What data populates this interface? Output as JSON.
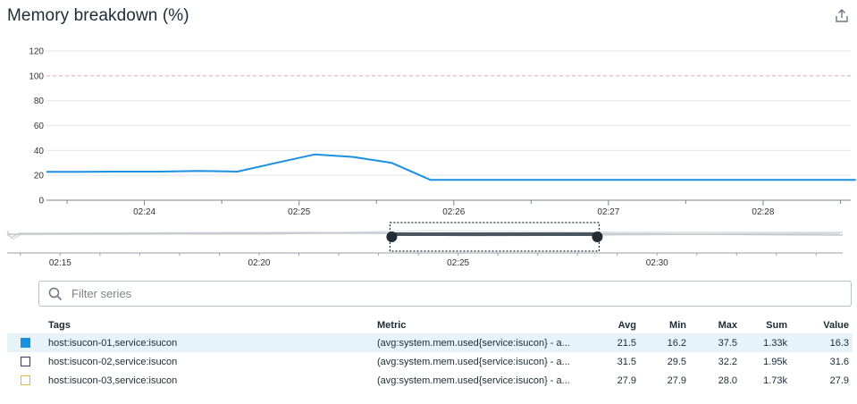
{
  "widget": {
    "title": "Memory breakdown (%)",
    "share_icon": "share-icon"
  },
  "chart_data": {
    "type": "line",
    "ylim": [
      0,
      120
    ],
    "yticks": [
      "0",
      "20",
      "40",
      "60",
      "80",
      "100",
      "120"
    ],
    "threshold": {
      "value": 100,
      "color": "#e9a5b0",
      "style": "dashed"
    },
    "x_ticks": [
      "02:24",
      "02:25",
      "02:26",
      "02:27",
      "02:28"
    ],
    "series": [
      {
        "color": "#1b8fe0",
        "x": [
          "02:23:22",
          "02:23:36",
          "02:23:51",
          "02:24:06",
          "02:24:21",
          "02:24:36",
          "02:24:51",
          "02:25:06",
          "02:25:21",
          "02:25:36",
          "02:25:51",
          "02:26:06",
          "02:26:21",
          "02:26:36",
          "02:26:51",
          "02:27:06",
          "02:27:21",
          "02:27:36",
          "02:27:51",
          "02:28:06",
          "02:28:21",
          "02:28:36"
        ],
        "y": [
          22.8,
          22.8,
          23.0,
          23.0,
          23.6,
          23.0,
          30.0,
          36.8,
          34.8,
          30.0,
          16.3,
          16.3,
          16.3,
          16.3,
          16.3,
          16.3,
          16.3,
          16.3,
          16.3,
          16.3,
          16.3,
          16.3
        ]
      }
    ],
    "navigator": {
      "x_ticks": [
        "02:15",
        "02:20",
        "02:25",
        "02:30"
      ],
      "selection": [
        "02:23:20",
        "02:28:30"
      ]
    }
  },
  "filter": {
    "placeholder": "Filter series",
    "icon": "search-icon"
  },
  "legend_table": {
    "columns": [
      "Tags",
      "Metric",
      "Avg",
      "Min",
      "Max",
      "Sum",
      "Value"
    ],
    "rows": [
      {
        "color": "#1b8fe0",
        "fill": true,
        "tags": "host:isucon-01,service:isucon",
        "metric": "(avg:system.mem.used{service:isucon} - a...",
        "avg": "21.5",
        "min": "16.2",
        "max": "37.5",
        "sum": "1.33k",
        "value": "16.3",
        "selected": true
      },
      {
        "color": "#3b2f7a",
        "fill": false,
        "tags": "host:isucon-02,service:isucon",
        "metric": "(avg:system.mem.used{service:isucon} - a...",
        "avg": "31.5",
        "min": "29.5",
        "max": "32.2",
        "sum": "1.95k",
        "value": "31.6",
        "selected": false
      },
      {
        "color": "#f0b429",
        "fill": false,
        "tags": "host:isucon-03,service:isucon",
        "metric": "(avg:system.mem.used{service:isucon} - a...",
        "avg": "27.9",
        "min": "27.9",
        "max": "28.0",
        "sum": "1.73k",
        "value": "27.9",
        "selected": false
      }
    ]
  }
}
